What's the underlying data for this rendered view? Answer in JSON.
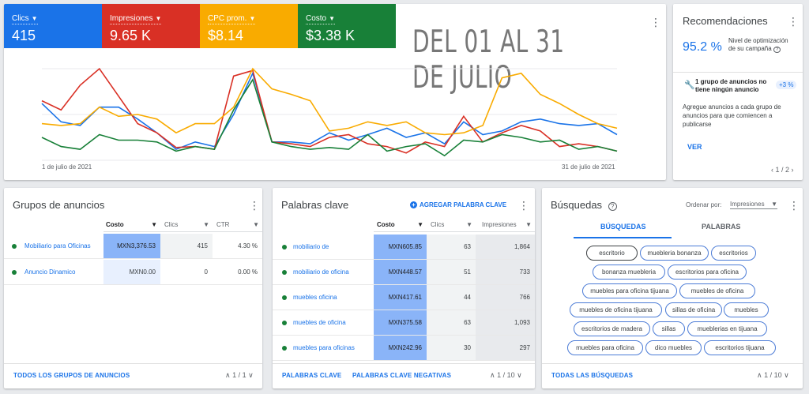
{
  "overview": {
    "metrics": [
      {
        "label": "Clics",
        "value": "415",
        "color": "#1a73e8"
      },
      {
        "label": "Impresiones",
        "value": "9.65 K",
        "color": "#d93025"
      },
      {
        "label": "CPC prom.",
        "value": "$8.14",
        "color": "#f9ab00"
      },
      {
        "label": "Costo",
        "value": "$3.38 K",
        "color": "#188038"
      }
    ],
    "big_title": "DEL 01 AL 31 DE JULIO",
    "start_date": "1 de julio de 2021",
    "end_date": "31 de julio de 2021"
  },
  "chart_data": {
    "type": "line",
    "x": [
      1,
      2,
      3,
      4,
      5,
      6,
      7,
      8,
      9,
      10,
      11,
      12,
      13,
      14,
      15,
      16,
      17,
      18,
      19,
      20,
      21,
      22,
      23,
      24,
      25,
      26,
      27,
      28,
      29,
      30,
      31
    ],
    "series": [
      {
        "name": "Clics",
        "color": "#1a73e8",
        "values": [
          0.62,
          0.42,
          0.38,
          0.58,
          0.58,
          0.45,
          0.3,
          0.12,
          0.2,
          0.15,
          0.5,
          0.95,
          0.2,
          0.2,
          0.18,
          0.3,
          0.22,
          0.28,
          0.35,
          0.25,
          0.3,
          0.18,
          0.42,
          0.28,
          0.32,
          0.42,
          0.45,
          0.4,
          0.38,
          0.4,
          0.28
        ]
      },
      {
        "name": "Impresiones",
        "color": "#d93025",
        "values": [
          0.65,
          0.55,
          0.82,
          1.0,
          0.7,
          0.4,
          0.3,
          0.14,
          0.15,
          0.12,
          0.92,
          0.98,
          0.2,
          0.18,
          0.15,
          0.25,
          0.28,
          0.18,
          0.15,
          0.08,
          0.2,
          0.15,
          0.48,
          0.2,
          0.3,
          0.38,
          0.32,
          0.15,
          0.18,
          0.15,
          0.1
        ]
      },
      {
        "name": "CPC prom.",
        "color": "#f9ab00",
        "values": [
          0.4,
          0.38,
          0.4,
          0.58,
          0.48,
          0.5,
          0.45,
          0.3,
          0.4,
          0.4,
          0.58,
          1.0,
          0.78,
          0.72,
          0.65,
          0.32,
          0.35,
          0.42,
          0.38,
          0.42,
          0.3,
          0.28,
          0.3,
          0.38,
          0.9,
          0.95,
          0.72,
          0.62,
          0.5,
          0.4,
          0.35
        ]
      },
      {
        "name": "Costo",
        "color": "#188038",
        "values": [
          0.25,
          0.15,
          0.12,
          0.28,
          0.22,
          0.22,
          0.2,
          0.1,
          0.15,
          0.12,
          0.55,
          0.88,
          0.2,
          0.15,
          0.12,
          0.14,
          0.12,
          0.28,
          0.1,
          0.15,
          0.18,
          0.05,
          0.22,
          0.2,
          0.28,
          0.25,
          0.2,
          0.22,
          0.12,
          0.15,
          0.1
        ]
      }
    ]
  },
  "recs": {
    "title": "Recomendaciones",
    "score": "95.2 %",
    "score_desc": "Nivel de optimización de su campaña",
    "rec_title": "1 grupo de anuncios no tiene ningún anuncio",
    "rec_badge": "+3 %",
    "rec_body": "Agregue anuncios a cada grupo de anuncios para que comiencen a publicarse",
    "action": "VER",
    "pager": "1 / 2"
  },
  "groups": {
    "title": "Grupos de anuncios",
    "headers": [
      "Costo",
      "Clics",
      "CTR"
    ],
    "rows": [
      {
        "name": "Mobiliario para Oficinas",
        "cost": "MXN3,376.53",
        "clicks": "415",
        "ctr": "4.30 %"
      },
      {
        "name": "Anuncio Dinamico",
        "cost": "MXN0.00",
        "clicks": "0",
        "ctr": "0.00 %"
      }
    ],
    "footer": "TODOS LOS GRUPOS DE ANUNCIOS",
    "pager": "1 / 1"
  },
  "keywords": {
    "title": "Palabras clave",
    "add_label": "AGREGAR PALABRA CLAVE",
    "headers": [
      "Costo",
      "Clics",
      "Impresiones"
    ],
    "rows": [
      {
        "name": "mobiliario de",
        "cost": "MXN605.85",
        "clicks": "63",
        "impr": "1,864"
      },
      {
        "name": "mobiliario de oficina",
        "cost": "MXN448.57",
        "clicks": "51",
        "impr": "733"
      },
      {
        "name": "muebles oficina",
        "cost": "MXN417.61",
        "clicks": "44",
        "impr": "766"
      },
      {
        "name": "muebles de oficina",
        "cost": "MXN375.58",
        "clicks": "63",
        "impr": "1,093"
      },
      {
        "name": "muebles para oficinas",
        "cost": "MXN242.96",
        "clicks": "30",
        "impr": "297"
      }
    ],
    "footer1": "PALABRAS CLAVE",
    "footer2": "PALABRAS CLAVE NEGATIVAS",
    "pager": "1 / 10"
  },
  "searches": {
    "title": "Búsquedas",
    "sort_label": "Ordenar por:",
    "sort_value": "Impresiones",
    "tab1": "BÚSQUEDAS",
    "tab2": "PALABRAS",
    "chips": [
      "escritorio",
      "muebleria bonanza",
      "escritorios",
      "bonanza muebleria",
      "escritorios para oficina",
      "muebles para oficina tijuana",
      "muebles de oficina",
      "muebles de oficina tijuana",
      "sillas de oficina",
      "muebles",
      "escritorios de madera",
      "sillas",
      "mueblerias en tijuana",
      "muebles para oficina",
      "dico muebles",
      "escritorios tijuana"
    ],
    "footer": "TODAS LAS BÚSQUEDAS",
    "pager": "1 / 10"
  }
}
